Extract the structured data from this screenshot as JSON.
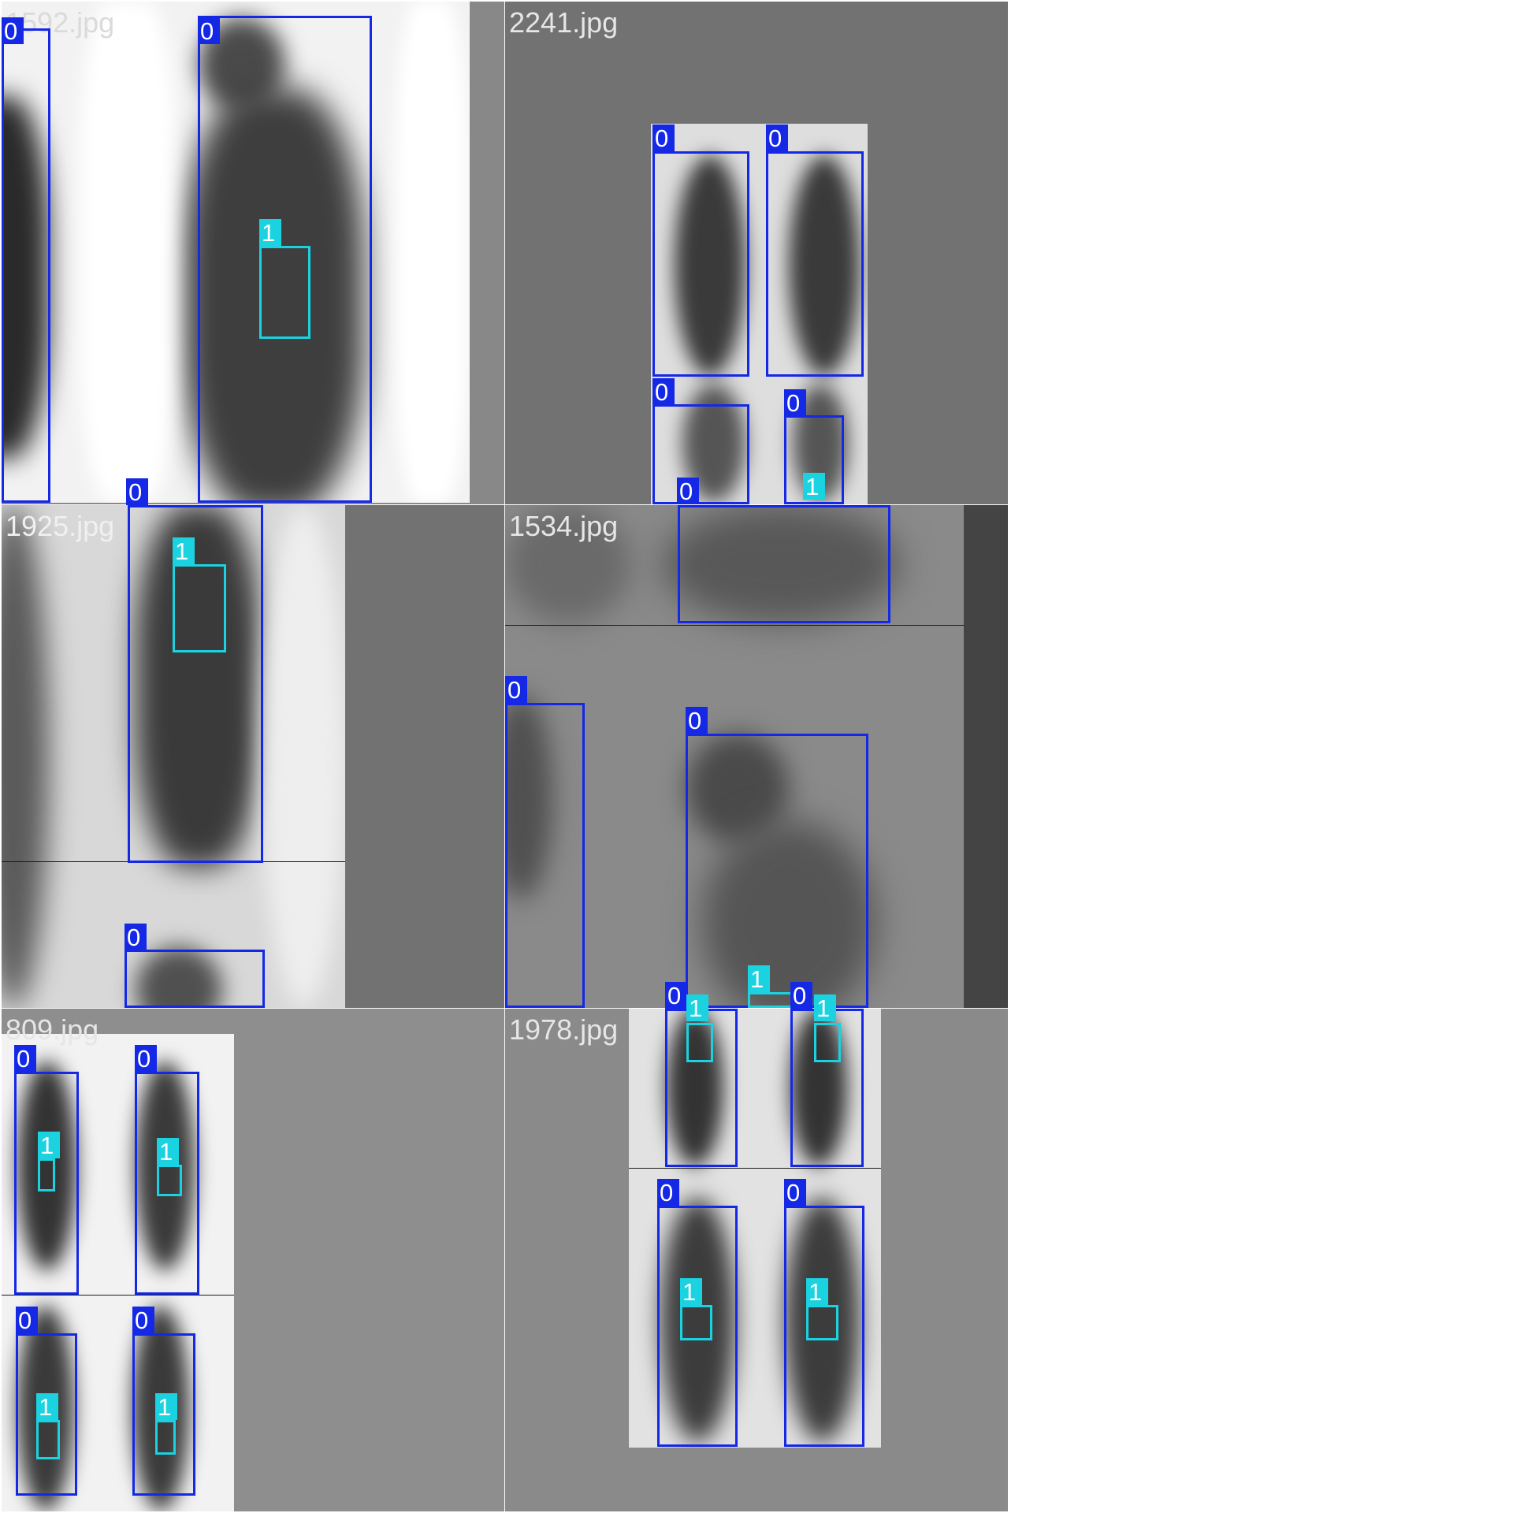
{
  "class_colors": {
    "0": "#1428e6",
    "1": "#1ad2e0"
  },
  "tiles": [
    {
      "filename": "1592.jpg"
    },
    {
      "filename": "2241.jpg"
    },
    {
      "filename": "1925.jpg"
    },
    {
      "filename": "1534.jpg"
    },
    {
      "filename": "809.jpg"
    },
    {
      "filename": "1978.jpg"
    }
  ],
  "class_labels": {
    "c0": "0",
    "c1": "1"
  }
}
